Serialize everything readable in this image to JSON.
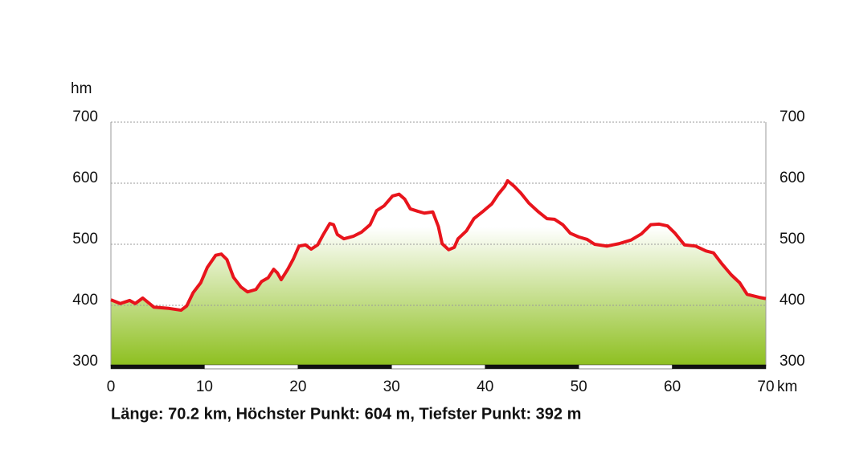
{
  "chart_data": {
    "type": "area",
    "y_axis_label": "hm",
    "x_axis_label": "km",
    "summary": "Länge: 70.2 km, Höchster Punkt: 604 m, Tiefster Punkt: 392 m",
    "x": [
      0,
      1,
      2,
      2.6,
      3.4,
      4.6,
      6.2,
      7.5,
      8.1,
      8.8,
      9.6,
      10.3,
      11.2,
      11.8,
      12.4,
      13.1,
      13.9,
      14.6,
      15.5,
      16.1,
      16.8,
      17.4,
      17.8,
      18.2,
      18.9,
      19.5,
      20.1,
      20.8,
      21.4,
      22.1,
      22.7,
      23.4,
      23.8,
      24.2,
      24.9,
      25.9,
      26.8,
      27.7,
      28.4,
      29.2,
      30.1,
      30.8,
      31.4,
      32.0,
      32.8,
      33.5,
      34.4,
      35.0,
      35.4,
      36.1,
      36.7,
      37.1,
      38.0,
      38.8,
      39.7,
      40.7,
      41.4,
      42.1,
      42.4,
      43.1,
      43.8,
      44.7,
      45.7,
      46.6,
      47.4,
      48.3,
      49.1,
      50.0,
      50.9,
      51.7,
      53.0,
      54.3,
      55.6,
      56.7,
      57.7,
      58.6,
      59.5,
      60.3,
      61.3,
      62.5,
      63.6,
      64.4,
      65.3,
      66.3,
      67.2,
      68.0,
      69.3,
      70.0
    ],
    "values": [
      409,
      403,
      408,
      403,
      412,
      397,
      395,
      392,
      399,
      421,
      437,
      462,
      482,
      484,
      475,
      446,
      430,
      422,
      426,
      439,
      445,
      459,
      453,
      442,
      459,
      476,
      497,
      499,
      492,
      499,
      516,
      534,
      532,
      516,
      509,
      513,
      520,
      532,
      555,
      563,
      579,
      582,
      574,
      558,
      554,
      551,
      553,
      529,
      501,
      491,
      495,
      509,
      522,
      542,
      553,
      566,
      582,
      595,
      604,
      595,
      584,
      567,
      553,
      542,
      541,
      532,
      518,
      512,
      508,
      500,
      497,
      501,
      507,
      517,
      532,
      533,
      530,
      518,
      499,
      497,
      489,
      486,
      468,
      450,
      437,
      418,
      413,
      411
    ],
    "color": "#e8141c",
    "fill_top": "#ffffff",
    "fill_bottom": "#8dbf1e",
    "xlim": [
      0,
      70
    ],
    "xticks": [
      0,
      10,
      20,
      30,
      40,
      50,
      60,
      70
    ],
    "ylim": [
      300,
      700
    ],
    "yticks": [
      300,
      400,
      500,
      600,
      700
    ],
    "y2lim": [
      300,
      700
    ],
    "y2ticks": [
      300,
      400,
      500,
      600,
      700
    ],
    "grid": true
  }
}
